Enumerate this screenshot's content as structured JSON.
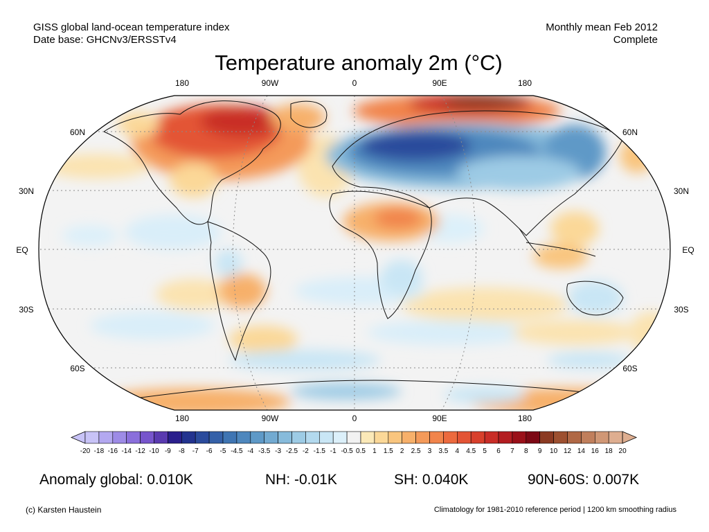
{
  "header": {
    "index_name": "GISS global land-ocean temperature index",
    "data_base": "Date base: GHCNv3/ERSSTv4",
    "period": "Monthly mean Feb 2012",
    "status": "Complete"
  },
  "map": {
    "title": "Temperature anomaly 2m (°C)",
    "projection": "robinson",
    "lon_labels": [
      "180",
      "90W",
      "0",
      "90E",
      "180"
    ],
    "lat_labels": [
      "60N",
      "30N",
      "EQ",
      "30S",
      "60S"
    ],
    "anomaly_regions": [
      {
        "region": "north-america-northeast",
        "level": "warm"
      },
      {
        "region": "alaska",
        "level": "warm"
      },
      {
        "region": "siberia-arctic",
        "level": "very-warm"
      },
      {
        "region": "greenland",
        "level": "warm"
      },
      {
        "region": "eurasia",
        "level": "very-cold"
      },
      {
        "region": "east-asia",
        "level": "cold"
      },
      {
        "region": "sahara",
        "level": "warm"
      },
      {
        "region": "south-america",
        "level": "warm"
      },
      {
        "region": "antarctic-coast",
        "level": "warm"
      }
    ]
  },
  "colorbar": {
    "labels": [
      "-20",
      "-18",
      "-16",
      "-14",
      "-12",
      "-10",
      "-9",
      "-8",
      "-7",
      "-6",
      "-5",
      "-4.5",
      "-4",
      "-3.5",
      "-3",
      "-2.5",
      "-2",
      "-1.5",
      "-1",
      "-0.5",
      "0.5",
      "1",
      "1.5",
      "2",
      "2.5",
      "3",
      "3.5",
      "4",
      "4.5",
      "5",
      "6",
      "7",
      "8",
      "9",
      "10",
      "12",
      "14",
      "16",
      "18",
      "20"
    ],
    "colors": [
      "#c8c3f7",
      "#b3a8f0",
      "#9d8be6",
      "#8a6fdb",
      "#7755cc",
      "#5a3ab0",
      "#2a1f8c",
      "#23338f",
      "#2b4b9c",
      "#3561a8",
      "#3f75b3",
      "#4e87bd",
      "#5e99c7",
      "#72aad1",
      "#87bbdb",
      "#9dcbe5",
      "#b3d9ee",
      "#c9e6f5",
      "#dcf0fa",
      "#f2f2f2",
      "#fbe9b8",
      "#fbd898",
      "#f9c57e",
      "#f7b06a",
      "#f49a5a",
      "#f1844b",
      "#ec6a3e",
      "#e35435",
      "#d8402c",
      "#c92d27",
      "#b31d21",
      "#9a1019",
      "#7c0814",
      "#8b3a22",
      "#9d5030",
      "#b06845",
      "#c07f5c",
      "#d09775",
      "#deae90"
    ]
  },
  "stats": {
    "global": "Anomaly global: 0.010K",
    "nh": "NH: -0.01K",
    "sh": "SH: 0.040K",
    "polar": "90N-60S: 0.007K"
  },
  "footer": {
    "credit": "(c) Karsten Haustein",
    "note": "Climatology for 1981-2010 reference period | 1200 km smoothing radius"
  }
}
